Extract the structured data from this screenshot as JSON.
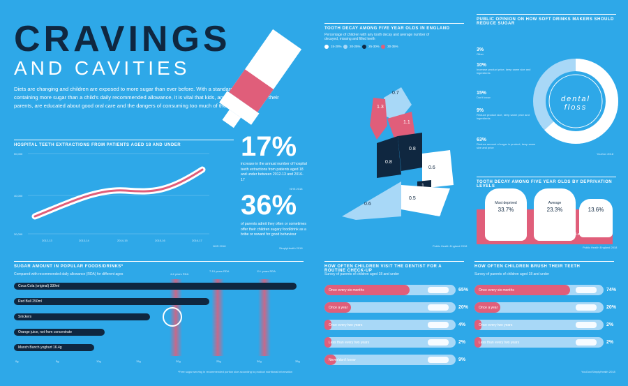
{
  "header": {
    "title_line1": "CRAVINGS",
    "title_line2": "AND CAVITIES",
    "intro": "Diets are changing and children are exposed to more sugar than ever before. With a standard chocolate bar containing more sugar than a child's daily recommended allowance, it is vital that kids, and more importantly their parents, are educated about good oral care and the dangers of consuming too much of the sweet stuff"
  },
  "extractions": {
    "title": "HOSPITAL TEETH EXTRACTIONS FROM PATIENTS AGED 18 AND UNDER",
    "y_ticks": [
      "50,000",
      "40,000",
      "30,000"
    ],
    "x_ticks": [
      "2012-13",
      "2013-14",
      "2014-15",
      "2015-16",
      "2016-17"
    ],
    "source": "NHS 2018"
  },
  "stat17": {
    "number": "17%",
    "text": "increase in the annual number of hospital teeth extractions from patients aged 18 and under between 2012-13 and 2016-17",
    "source": "NHS 2018"
  },
  "stat36": {
    "number": "36%",
    "text": "of parents admit they often or sometimes offer their children sugary food/drink as a bribe or reward for good behaviour",
    "source": "SimplyHealth 2018"
  },
  "sugar": {
    "title": "SUGAR AMOUNT IN POPULAR FOODS/DRINKS*",
    "subtitle": "Compared with recommended daily allowance (RDA) for different ages",
    "rda_labels": [
      "4-6 years RDA",
      "7-10 years RDA",
      "11+ years RDA"
    ],
    "items": [
      "Coca Cola (original) 330ml",
      "Red Bull 250ml",
      "Snickers",
      "Orange juice, not from concentrate",
      "Munch Bunch yoghurt 16.4g"
    ],
    "x_ticks": [
      "0g",
      "5g",
      "10g",
      "15g",
      "20g",
      "25g",
      "30g",
      "35g"
    ],
    "footnote": "*Free sugar serving in recommended portion size according to product nutritional information"
  },
  "decay_map": {
    "title": "TOOTH DECAY AMONG FIVE YEAR OLDS IN ENGLAND",
    "subtitle": "Percentage of children with any tooth decay and average number of decayed, missing and filled teeth",
    "legend": [
      "15-20%",
      "20-25%",
      "25-30%",
      "30-35%"
    ],
    "legend_colors": [
      "#ffffff",
      "#a8d8f7",
      "#0f2740",
      "#e05e7a"
    ],
    "values": [
      "0.7",
      "1.3",
      "1.1",
      "0.8",
      "0.8",
      "0.6",
      "1",
      "0.5",
      "0.6",
      "0.9"
    ],
    "source": "Public Health England 2018"
  },
  "opinion": {
    "title": "PUBLIC OPINION ON HOW SOFT DRINKS MAKERS SHOULD REDUCE SUGAR",
    "items": [
      {
        "pct": "3%",
        "label": "Other"
      },
      {
        "pct": "10%",
        "label": "Increase product price, keep same size and ingredients"
      },
      {
        "pct": "15%",
        "label": "Don't know"
      },
      {
        "pct": "9%",
        "label": "Reduce product size, keep same price and ingredients"
      },
      {
        "pct": "63%",
        "label": "Reduce amount of sugar in product, keep same size and price"
      }
    ],
    "floss_label": "dental floss",
    "source": "YouGov 2018"
  },
  "deprivation": {
    "title": "TOOTH DECAY AMONG FIVE YEAR OLDS BY DEPRIVATION LEVELS",
    "teeth": [
      {
        "label": "Most deprived",
        "value": "33.7%"
      },
      {
        "label": "Average",
        "value": "23.3%"
      },
      {
        "label": "Least deprived",
        "value": "13.6%"
      }
    ],
    "source": "Public Health England 2018"
  },
  "dentist": {
    "title": "HOW OFTEN CHILDREN VISIT THE DENTIST FOR A ROUTINE CHECK-UP",
    "subtitle": "Survey of parents of children aged 18 and under",
    "rows": [
      {
        "label": "Once every six months",
        "pct": "65%",
        "value": 65
      },
      {
        "label": "Once a year",
        "pct": "20%",
        "value": 20
      },
      {
        "label": "Once every two years",
        "pct": "4%",
        "value": 4
      },
      {
        "label": "Less than every two years",
        "pct": "2%",
        "value": 2
      },
      {
        "label": "Never/don't know",
        "pct": "9%",
        "value": 9
      }
    ]
  },
  "brush": {
    "title": "HOW OFTEN CHILDREN BRUSH THEIR TEETH",
    "subtitle": "Survey of parents of children aged 18 and under",
    "rows": [
      {
        "label": "Once every six months",
        "pct": "74%",
        "value": 74
      },
      {
        "label": "Once a year",
        "pct": "20%",
        "value": 20
      },
      {
        "label": "Once every two years",
        "pct": "2%",
        "value": 2
      },
      {
        "label": "Less than every two years",
        "pct": "2%",
        "value": 2
      }
    ],
    "source": "YouGov/SimplyHealth 2018"
  }
}
